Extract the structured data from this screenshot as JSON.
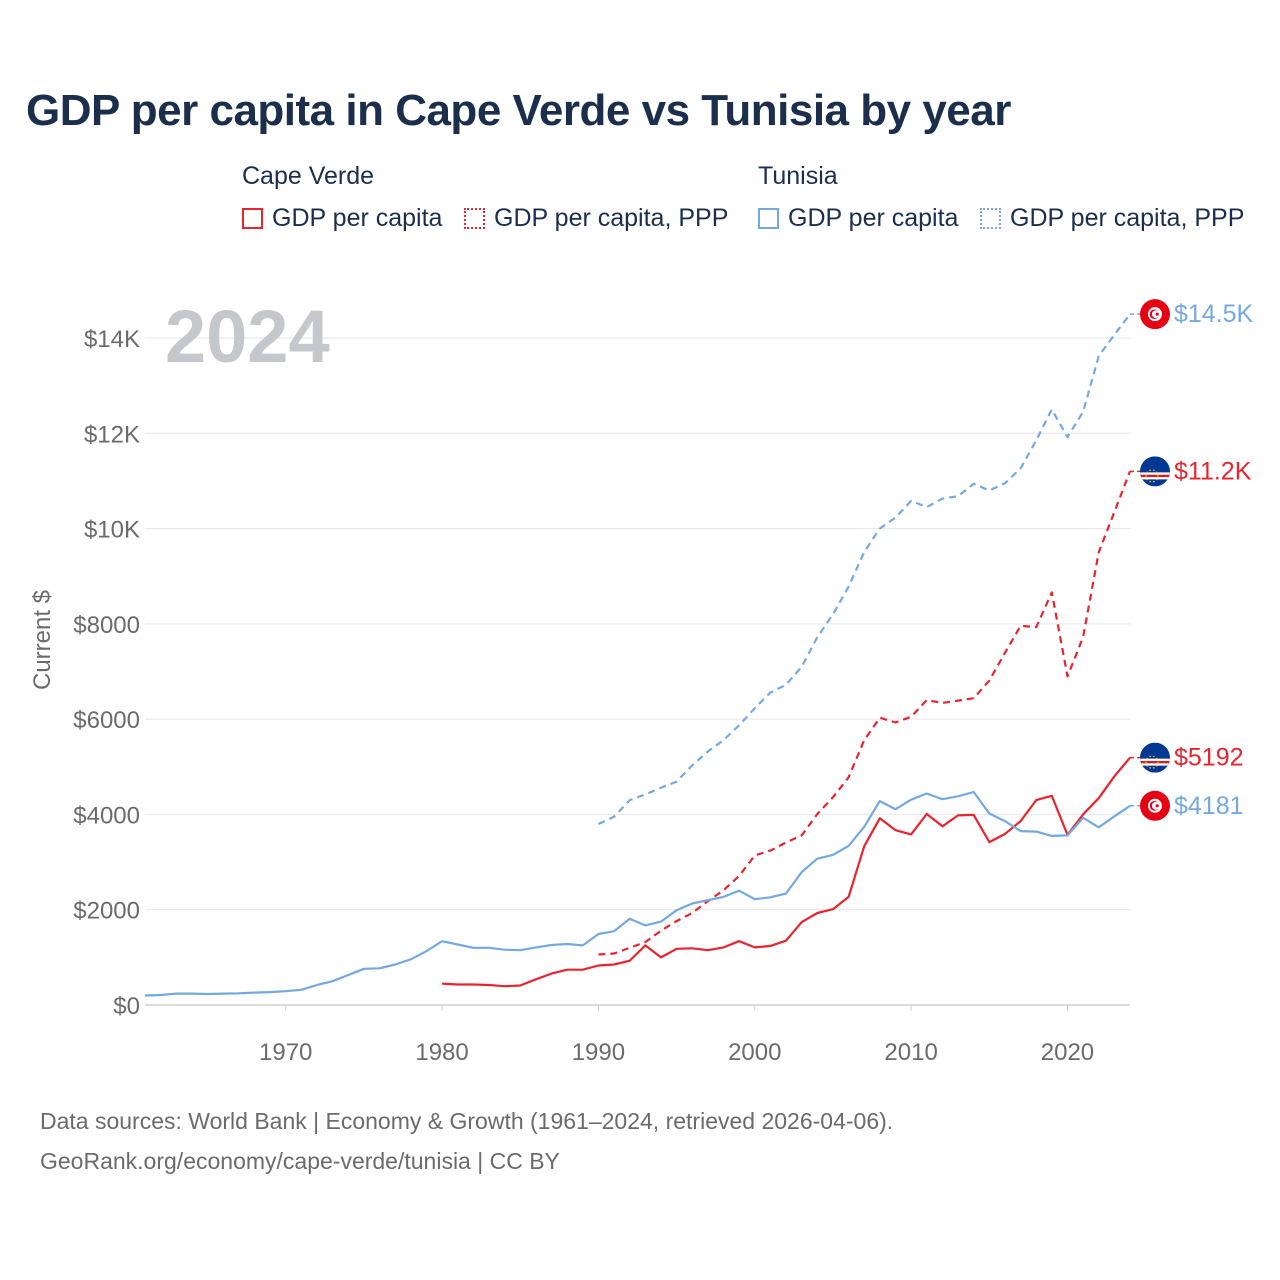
{
  "title": "GDP per capita in Cape Verde vs Tunisia by year",
  "legend": {
    "groups": [
      {
        "title": "Cape Verde",
        "items": [
          "GDP per capita",
          "GDP per capita, PPP"
        ],
        "color": "#e8242e"
      },
      {
        "title": "Tunisia",
        "items": [
          "GDP per capita",
          "GDP per capita, PPP"
        ],
        "color": "#74a9e0"
      }
    ]
  },
  "footer": {
    "line1": "Data sources: World Bank | Economy & Growth (1961–2024, retrieved 2026-04-06).",
    "line2": "GeoRank.org/economy/cape-verde/tunisia | CC BY"
  },
  "chart_data": {
    "type": "line",
    "title": "GDP per capita in Cape Verde vs Tunisia by year",
    "year_label": "2024",
    "ylabel": "Current $",
    "xlabel": "",
    "xlim": [
      1961,
      2024
    ],
    "ylim": [
      0,
      15000
    ],
    "xticks": [
      1970,
      1980,
      1990,
      2000,
      2010,
      2020
    ],
    "yticks": [
      0,
      2000,
      4000,
      6000,
      8000,
      10000,
      12000,
      14000
    ],
    "ytick_labels": [
      "$0",
      "$2000",
      "$4000",
      "$6000",
      "$8000",
      "$10K",
      "$12K",
      "$14K"
    ],
    "grid": true,
    "series": [
      {
        "name": "Tunisia GDP per capita, PPP",
        "country": "Tunisia",
        "color": "#74a9e0",
        "dash": true,
        "end_label": "$14.5K",
        "flag": "tunisia",
        "points": [
          [
            1990,
            3800
          ],
          [
            1991,
            3950
          ],
          [
            1992,
            4300
          ],
          [
            1993,
            4420
          ],
          [
            1994,
            4560
          ],
          [
            1995,
            4690
          ],
          [
            1996,
            5030
          ],
          [
            1997,
            5320
          ],
          [
            1998,
            5560
          ],
          [
            1999,
            5870
          ],
          [
            2000,
            6230
          ],
          [
            2001,
            6560
          ],
          [
            2002,
            6720
          ],
          [
            2003,
            7100
          ],
          [
            2004,
            7720
          ],
          [
            2005,
            8200
          ],
          [
            2006,
            8780
          ],
          [
            2007,
            9510
          ],
          [
            2008,
            10000
          ],
          [
            2009,
            10230
          ],
          [
            2010,
            10580
          ],
          [
            2011,
            10450
          ],
          [
            2012,
            10630
          ],
          [
            2013,
            10680
          ],
          [
            2014,
            10940
          ],
          [
            2015,
            10800
          ],
          [
            2016,
            10950
          ],
          [
            2017,
            11260
          ],
          [
            2018,
            11850
          ],
          [
            2019,
            12500
          ],
          [
            2020,
            11920
          ],
          [
            2021,
            12450
          ],
          [
            2022,
            13620
          ],
          [
            2023,
            14070
          ],
          [
            2024,
            14500
          ]
        ]
      },
      {
        "name": "Cape Verde GDP per capita, PPP",
        "country": "Cape Verde",
        "color": "#e8242e",
        "dash": true,
        "end_label": "$11.2K",
        "flag": "cape-verde",
        "points": [
          [
            1990,
            1060
          ],
          [
            1991,
            1080
          ],
          [
            1992,
            1200
          ],
          [
            1993,
            1320
          ],
          [
            1994,
            1560
          ],
          [
            1995,
            1760
          ],
          [
            1996,
            1930
          ],
          [
            1997,
            2180
          ],
          [
            1998,
            2410
          ],
          [
            1999,
            2710
          ],
          [
            2000,
            3140
          ],
          [
            2001,
            3240
          ],
          [
            2002,
            3410
          ],
          [
            2003,
            3560
          ],
          [
            2004,
            4010
          ],
          [
            2005,
            4360
          ],
          [
            2006,
            4780
          ],
          [
            2007,
            5560
          ],
          [
            2008,
            6030
          ],
          [
            2009,
            5930
          ],
          [
            2010,
            6050
          ],
          [
            2011,
            6400
          ],
          [
            2012,
            6340
          ],
          [
            2013,
            6390
          ],
          [
            2014,
            6440
          ],
          [
            2015,
            6810
          ],
          [
            2016,
            7390
          ],
          [
            2017,
            7960
          ],
          [
            2018,
            7930
          ],
          [
            2019,
            8660
          ],
          [
            2020,
            6900
          ],
          [
            2021,
            7720
          ],
          [
            2022,
            9500
          ],
          [
            2023,
            10350
          ],
          [
            2024,
            11200
          ]
        ]
      },
      {
        "name": "Cape Verde GDP per capita",
        "country": "Cape Verde",
        "color": "#e8242e",
        "dash": false,
        "end_label": "$5192",
        "flag": "cape-verde",
        "points": [
          [
            1980,
            450
          ],
          [
            1981,
            430
          ],
          [
            1982,
            430
          ],
          [
            1983,
            420
          ],
          [
            1984,
            395
          ],
          [
            1985,
            410
          ],
          [
            1986,
            540
          ],
          [
            1987,
            660
          ],
          [
            1988,
            740
          ],
          [
            1989,
            740
          ],
          [
            1990,
            830
          ],
          [
            1991,
            850
          ],
          [
            1992,
            930
          ],
          [
            1993,
            1250
          ],
          [
            1994,
            1000
          ],
          [
            1995,
            1180
          ],
          [
            1996,
            1190
          ],
          [
            1997,
            1150
          ],
          [
            1998,
            1210
          ],
          [
            1999,
            1340
          ],
          [
            2000,
            1210
          ],
          [
            2001,
            1240
          ],
          [
            2002,
            1350
          ],
          [
            2003,
            1740
          ],
          [
            2004,
            1930
          ],
          [
            2005,
            2010
          ],
          [
            2006,
            2270
          ],
          [
            2007,
            3330
          ],
          [
            2008,
            3920
          ],
          [
            2009,
            3670
          ],
          [
            2010,
            3580
          ],
          [
            2011,
            4010
          ],
          [
            2012,
            3750
          ],
          [
            2013,
            3980
          ],
          [
            2014,
            3990
          ],
          [
            2015,
            3420
          ],
          [
            2016,
            3590
          ],
          [
            2017,
            3860
          ],
          [
            2018,
            4300
          ],
          [
            2019,
            4390
          ],
          [
            2020,
            3570
          ],
          [
            2021,
            4000
          ],
          [
            2022,
            4340
          ],
          [
            2023,
            4800
          ],
          [
            2024,
            5192
          ]
        ]
      },
      {
        "name": "Tunisia GDP per capita",
        "country": "Tunisia",
        "color": "#74a9e0",
        "dash": false,
        "end_label": "$4181",
        "flag": "tunisia",
        "points": [
          [
            1961,
            200
          ],
          [
            1962,
            210
          ],
          [
            1963,
            240
          ],
          [
            1964,
            240
          ],
          [
            1965,
            230
          ],
          [
            1966,
            240
          ],
          [
            1967,
            245
          ],
          [
            1968,
            260
          ],
          [
            1969,
            270
          ],
          [
            1970,
            290
          ],
          [
            1971,
            320
          ],
          [
            1972,
            420
          ],
          [
            1973,
            500
          ],
          [
            1974,
            630
          ],
          [
            1975,
            760
          ],
          [
            1976,
            770
          ],
          [
            1977,
            850
          ],
          [
            1978,
            960
          ],
          [
            1979,
            1130
          ],
          [
            1980,
            1340
          ],
          [
            1981,
            1270
          ],
          [
            1982,
            1200
          ],
          [
            1983,
            1200
          ],
          [
            1984,
            1160
          ],
          [
            1985,
            1150
          ],
          [
            1986,
            1210
          ],
          [
            1987,
            1260
          ],
          [
            1988,
            1280
          ],
          [
            1989,
            1250
          ],
          [
            1990,
            1490
          ],
          [
            1991,
            1550
          ],
          [
            1992,
            1810
          ],
          [
            1993,
            1670
          ],
          [
            1994,
            1750
          ],
          [
            1995,
            1990
          ],
          [
            1996,
            2130
          ],
          [
            1997,
            2200
          ],
          [
            1998,
            2270
          ],
          [
            1999,
            2400
          ],
          [
            2000,
            2220
          ],
          [
            2001,
            2260
          ],
          [
            2002,
            2340
          ],
          [
            2003,
            2790
          ],
          [
            2004,
            3070
          ],
          [
            2005,
            3150
          ],
          [
            2006,
            3340
          ],
          [
            2007,
            3740
          ],
          [
            2008,
            4280
          ],
          [
            2009,
            4110
          ],
          [
            2010,
            4310
          ],
          [
            2011,
            4440
          ],
          [
            2012,
            4320
          ],
          [
            2013,
            4380
          ],
          [
            2014,
            4470
          ],
          [
            2015,
            4020
          ],
          [
            2016,
            3860
          ],
          [
            2017,
            3650
          ],
          [
            2018,
            3640
          ],
          [
            2019,
            3550
          ],
          [
            2020,
            3560
          ],
          [
            2021,
            3930
          ],
          [
            2022,
            3730
          ],
          [
            2023,
            3960
          ],
          [
            2024,
            4181
          ]
        ]
      }
    ]
  }
}
